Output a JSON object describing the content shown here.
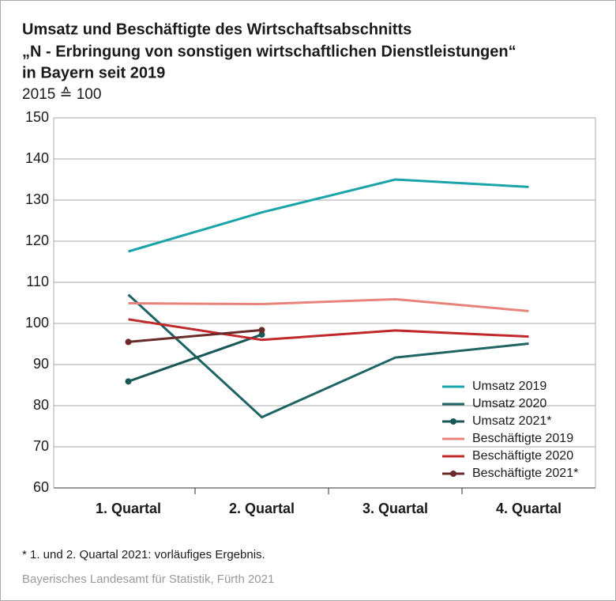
{
  "chart_data": {
    "type": "line",
    "title": [
      "Umsatz und Beschäftigte des Wirtschaftsabschnitts",
      "„N - Erbringung von sonstigen wirtschaftlichen Dienstleistungen“",
      "in Bayern seit 2019"
    ],
    "subtitle": "2015 ≙ 100",
    "footnote": "*  1. und 2. Quartal 2021: vorläufiges Ergebnis.",
    "source": "Bayerisches Landesamt für Statistik, Fürth 2021",
    "categories": [
      "1. Quartal",
      "2. Quartal",
      "3. Quartal",
      "4. Quartal"
    ],
    "ylim": [
      60,
      150
    ],
    "yticks": [
      60,
      70,
      80,
      90,
      100,
      110,
      120,
      130,
      140,
      150
    ],
    "grid": true,
    "legend": "lower right",
    "series": [
      {
        "name": "Umsatz 2019",
        "color": "#1aa3a8",
        "values": [
          117.5,
          127,
          135,
          133.2
        ]
      },
      {
        "name": "Umsatz 2020",
        "color": "#1e6464",
        "values": [
          107,
          77.2,
          91.7,
          95.1
        ]
      },
      {
        "name": "Umsatz 2021*",
        "color": "#1a5858",
        "marker": true,
        "values": [
          85.9,
          97.3,
          null,
          null
        ]
      },
      {
        "name": "Beschäftigte 2019",
        "color": "#e8837b",
        "values": [
          104.9,
          104.7,
          105.9,
          103.0
        ]
      },
      {
        "name": "Beschäftigte 2020",
        "color": "#c0282a",
        "values": [
          101,
          96,
          98.3,
          96.8
        ]
      },
      {
        "name": "Beschäftigte 2021*",
        "color": "#6b2a2a",
        "marker": true,
        "values": [
          95.5,
          98.4,
          null,
          null
        ]
      }
    ]
  }
}
